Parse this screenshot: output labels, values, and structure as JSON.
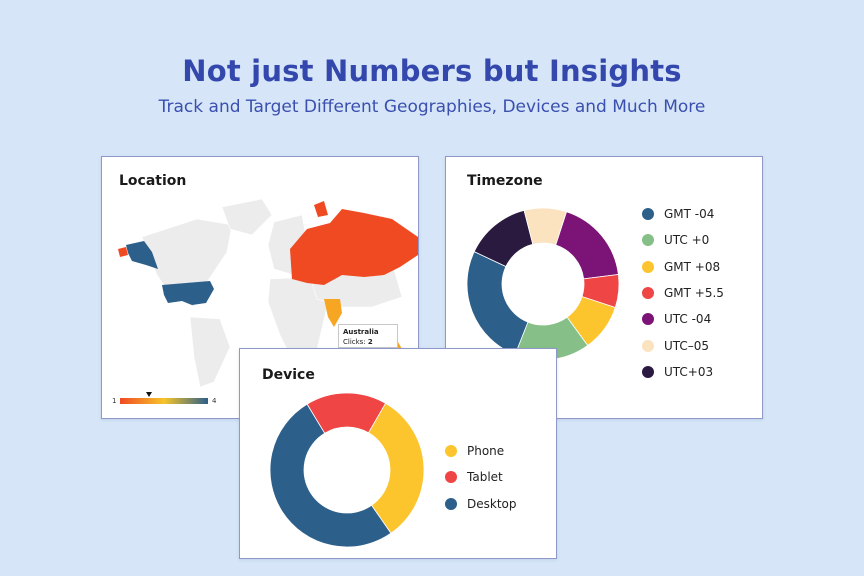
{
  "hero": {
    "title": "Not just Numbers but Insights",
    "subtitle": "Track and Target Different Geographies, Devices and Much More"
  },
  "location": {
    "title": "Location",
    "tooltip": {
      "country": "Australia",
      "clicks_label": "Clicks:",
      "clicks_value": "2"
    },
    "scale": {
      "min": "1",
      "max": "4",
      "colors": [
        "#f04a23",
        "#f6c52a",
        "#2c5f8a"
      ]
    },
    "regions": {
      "usa": "#2c5f8a",
      "alaska": "#2c5f8a",
      "russia": "#f04a23",
      "india": "#f6a623",
      "australia": "#f6a623",
      "land": "#ececec"
    }
  },
  "chart_data": [
    {
      "type": "pie",
      "title": "Timezone",
      "categories": [
        "GMT -04",
        "UTC +0",
        "GMT +08",
        "GMT +5.5",
        "UTC -04",
        "UTC–05",
        "UTC+03"
      ],
      "values": [
        26,
        16,
        10,
        7,
        18,
        9,
        14
      ],
      "order": [
        "UTC -04",
        "GMT +5.5",
        "GMT +08",
        "UTC +0",
        "GMT -04",
        "UTC+03",
        "UTC–05"
      ],
      "colors": {
        "GMT -04": "#2c5f8a",
        "UTC +0": "#86c088",
        "GMT +08": "#fcc52d",
        "GMT +5.5": "#ef4545",
        "UTC -04": "#7b1476",
        "UTC–05": "#fbe3c0",
        "UTC+03": "#2a1a40"
      },
      "donut": true
    },
    {
      "type": "pie",
      "title": "Device",
      "categories": [
        "Phone",
        "Tablet",
        "Desktop"
      ],
      "values": [
        32,
        17,
        51
      ],
      "order": [
        "Phone",
        "Desktop",
        "Tablet"
      ],
      "colors": {
        "Phone": "#fcc52d",
        "Tablet": "#ef4545",
        "Desktop": "#2c5f8a"
      },
      "donut": true
    }
  ]
}
